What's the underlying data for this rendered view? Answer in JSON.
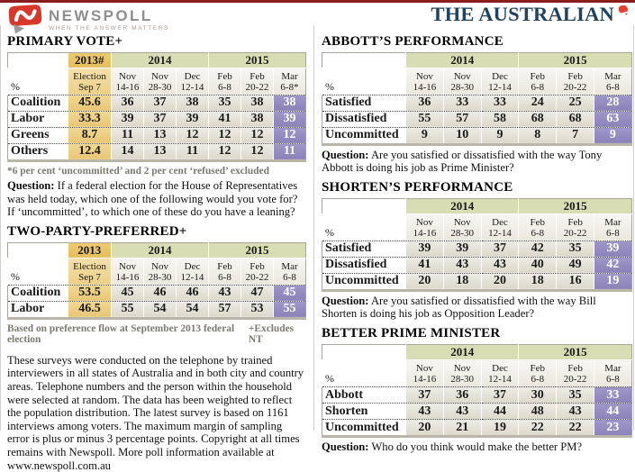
{
  "header": {
    "newspoll_name": "NEWSPOLL",
    "newspoll_tagline": "WHEN THE ANSWER MATTERS",
    "masthead": "THE AUSTRALIAN"
  },
  "colors": {
    "top_bar": "#8a1e1e",
    "newspoll_red": "#d8382b",
    "masthead_navy": "#20445f",
    "gold": "#e8c676",
    "green": "#d9ddb4",
    "purple": "#938bbd"
  },
  "strings": {
    "question_label": "Question:"
  },
  "tables": {
    "primary_vote": {
      "title": "PRIMARY VOTE+",
      "unit": "%",
      "year_groups": [
        {
          "label": "2013#",
          "span": 1,
          "style": "gold"
        },
        {
          "label": "2014",
          "span": 3,
          "style": "green"
        },
        {
          "label": "2015",
          "span": 3,
          "style": "green"
        }
      ],
      "columns": [
        [
          "Election",
          "Sep 7"
        ],
        [
          "Nov",
          "14-16"
        ],
        [
          "Nov",
          "28-30"
        ],
        [
          "Dec",
          "12-14"
        ],
        [
          "Feb",
          "6-8"
        ],
        [
          "Feb",
          "20-22"
        ],
        [
          "Mar",
          "6-8*"
        ]
      ],
      "first_col_style": "gold",
      "rows": [
        {
          "label": "Coalition",
          "values": [
            "45.6",
            "36",
            "37",
            "38",
            "35",
            "38",
            "38"
          ]
        },
        {
          "label": "Labor",
          "values": [
            "33.3",
            "39",
            "37",
            "39",
            "41",
            "38",
            "39"
          ]
        },
        {
          "label": "Greens",
          "values": [
            "8.7",
            "11",
            "13",
            "12",
            "12",
            "12",
            "12"
          ]
        },
        {
          "label": "Others",
          "values": [
            "12.4",
            "14",
            "13",
            "11",
            "12",
            "12",
            "11"
          ]
        }
      ],
      "footnote": "*6 per cent ‘uncommitted’ and 2 per cent ‘refused’ excluded",
      "question": "If a federal election for the House of Representatives was held today, which one of the following would you vote for? If ‘uncommitted’, to which one of these do you have a leaning?"
    },
    "two_party": {
      "title": "TWO-PARTY-PREFERRED+",
      "unit": "%",
      "year_groups": [
        {
          "label": "2013",
          "span": 1,
          "style": "gold"
        },
        {
          "label": "2014",
          "span": 3,
          "style": "green"
        },
        {
          "label": "2015",
          "span": 3,
          "style": "green"
        }
      ],
      "columns": [
        [
          "Election",
          "Sep 7"
        ],
        [
          "Nov",
          "14-16"
        ],
        [
          "Nov",
          "28-30"
        ],
        [
          "Dec",
          "12-14"
        ],
        [
          "Feb",
          "6-8"
        ],
        [
          "Feb",
          "20-22"
        ],
        [
          "Mar",
          "6-8"
        ]
      ],
      "first_col_style": "gold",
      "rows": [
        {
          "label": "Coalition",
          "values": [
            "53.5",
            "45",
            "46",
            "46",
            "43",
            "47",
            "45"
          ]
        },
        {
          "label": "Labor",
          "values": [
            "46.5",
            "55",
            "54",
            "54",
            "57",
            "53",
            "55"
          ]
        }
      ],
      "footnote_left": "Based on preference flow at September 2013 federal election",
      "footnote_right": "+Excludes NT"
    },
    "abbott": {
      "title": "ABBOTT’S PERFORMANCE",
      "unit": "%",
      "year_groups": [
        {
          "label": "2014",
          "span": 3,
          "style": "green"
        },
        {
          "label": "2015",
          "span": 3,
          "style": "green"
        }
      ],
      "columns": [
        [
          "Nov",
          "14-16"
        ],
        [
          "Nov",
          "28-30"
        ],
        [
          "Dec",
          "12-14"
        ],
        [
          "Feb",
          "6-8"
        ],
        [
          "Feb",
          "20-22"
        ],
        [
          "Mar",
          "6-8"
        ]
      ],
      "rows": [
        {
          "label": "Satisfied",
          "values": [
            "36",
            "33",
            "33",
            "24",
            "25",
            "28"
          ]
        },
        {
          "label": "Dissatisfied",
          "values": [
            "55",
            "57",
            "58",
            "68",
            "68",
            "63"
          ]
        },
        {
          "label": "Uncommitted",
          "values": [
            "9",
            "10",
            "9",
            "8",
            "7",
            "9"
          ]
        }
      ],
      "question": "Are you satisfied or dissatisfied with the way Tony Abbott is doing his job as Prime Minister?"
    },
    "shorten": {
      "title": "SHORTEN’S PERFORMANCE",
      "unit": "%",
      "year_groups": [
        {
          "label": "2014",
          "span": 3,
          "style": "green"
        },
        {
          "label": "2015",
          "span": 3,
          "style": "green"
        }
      ],
      "columns": [
        [
          "Nov",
          "14-16"
        ],
        [
          "Nov",
          "28-30"
        ],
        [
          "Dec",
          "12-14"
        ],
        [
          "Feb",
          "6-8"
        ],
        [
          "Feb",
          "20-22"
        ],
        [
          "Mar",
          "6-8"
        ]
      ],
      "rows": [
        {
          "label": "Satisfied",
          "values": [
            "39",
            "39",
            "37",
            "42",
            "35",
            "39"
          ]
        },
        {
          "label": "Dissatisfied",
          "values": [
            "41",
            "43",
            "43",
            "40",
            "49",
            "42"
          ]
        },
        {
          "label": "Uncommitted",
          "values": [
            "20",
            "18",
            "20",
            "18",
            "16",
            "19"
          ]
        }
      ],
      "question": "Are you satisfied or dissatisfied with the way Bill Shorten is doing his job as Opposition Leader?"
    },
    "better_pm": {
      "title": "BETTER PRIME MINISTER",
      "unit": "%",
      "year_groups": [
        {
          "label": "2014",
          "span": 3,
          "style": "green"
        },
        {
          "label": "2015",
          "span": 3,
          "style": "green"
        }
      ],
      "columns": [
        [
          "Nov",
          "14-16"
        ],
        [
          "Nov",
          "28-30"
        ],
        [
          "Dec",
          "12-14"
        ],
        [
          "Feb",
          "6-8"
        ],
        [
          "Feb",
          "20-22"
        ],
        [
          "Mar",
          "6-8"
        ]
      ],
      "rows": [
        {
          "label": "Abbott",
          "values": [
            "37",
            "36",
            "37",
            "30",
            "35",
            "33"
          ]
        },
        {
          "label": "Shorten",
          "values": [
            "43",
            "43",
            "44",
            "48",
            "43",
            "44"
          ]
        },
        {
          "label": "Uncommitted",
          "values": [
            "20",
            "21",
            "19",
            "22",
            "22",
            "23"
          ]
        }
      ],
      "question": "Who do you think would make the better PM?"
    }
  },
  "methodology": "These surveys were conducted on the telephone by trained interviewers in all states of Australia and in both city and country areas. Telephone numbers and the person within the household were selected at random. The data has been weighted to reflect the population distribution. The latest survey is based on 1161 interviews among voters. The maximum margin of sampling error is plus or minus 3 percentage points. Copyright at all times remains with Newspoll. More poll information available at www.newspoll.com.au"
}
